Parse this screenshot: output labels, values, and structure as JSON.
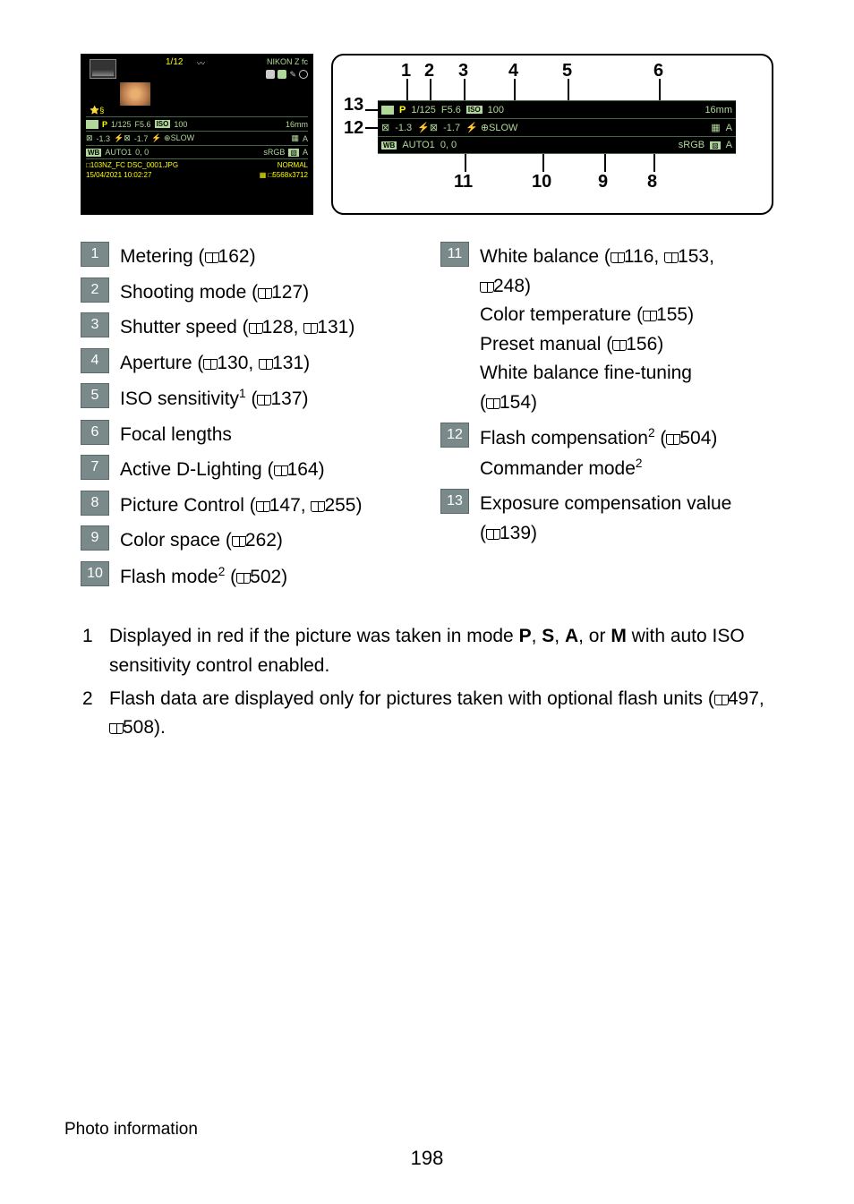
{
  "camera_screen": {
    "frame_counter": "1/12",
    "model": "NIKON Z fc",
    "star": "⭐§",
    "row1": {
      "mode": "P",
      "shutter": "1/125",
      "aperture": "F5.6",
      "iso_label": "ISO",
      "iso": "100",
      "focal": "16mm"
    },
    "row2": {
      "exp_comp": "-1.3",
      "flash_comp": "-1.7",
      "flash_mode": "⚡ ⊕SLOW",
      "dlighting": "A"
    },
    "row3": {
      "wb_label": "WB",
      "wb": "AUTO1",
      "wb_tune": "0, 0",
      "color_space": "sRGB",
      "pc": "A"
    },
    "meta1_left": "□103NZ_FC DSC_0001.JPG",
    "meta1_right": "NORMAL",
    "meta2_left": "15/04/2021 10:02:27",
    "meta2_right": "▦ □5568x3712"
  },
  "callout_numbers": [
    "1",
    "2",
    "3",
    "4",
    "5",
    "6",
    "7",
    "8",
    "9",
    "10",
    "11",
    "12",
    "13"
  ],
  "legend_left": [
    {
      "n": "1",
      "text": "Metering (📖162)"
    },
    {
      "n": "2",
      "text": "Shooting mode (📖127)"
    },
    {
      "n": "3",
      "text": "Shutter speed (📖128, 📖131)"
    },
    {
      "n": "4",
      "text": "Aperture (📖130, 📖131)"
    },
    {
      "n": "5",
      "text": "ISO sensitivity¹ (📖137)"
    },
    {
      "n": "6",
      "text": "Focal lengths"
    },
    {
      "n": "7",
      "text": "Active D-Lighting (📖164)"
    },
    {
      "n": "8",
      "text": "Picture Control (📖147, 📖255)"
    },
    {
      "n": "9",
      "text": "Color space (📖262)"
    },
    {
      "n": "10",
      "text": "Flash mode² (📖502)"
    }
  ],
  "legend_right": [
    {
      "n": "11",
      "lines": [
        "White balance (📖116, 📖153,",
        "📖248)",
        "Color temperature (📖155)",
        "Preset manual (📖156)",
        "White balance fine-tuning",
        "(📖154)"
      ]
    },
    {
      "n": "12",
      "lines": [
        "Flash compensation² (📖504)",
        "Commander mode²"
      ]
    },
    {
      "n": "13",
      "lines": [
        "Exposure compensation value",
        "(📖139)"
      ]
    }
  ],
  "footnotes": [
    {
      "n": "1",
      "text_parts": [
        "Displayed in red if the picture was taken in mode ",
        {
          "b": "P"
        },
        ", ",
        {
          "b": "S"
        },
        ", ",
        {
          "b": "A"
        },
        ", or ",
        {
          "b": "M"
        },
        " with auto ISO sensitivity control enabled."
      ]
    },
    {
      "n": "2",
      "text_parts": [
        "Flash data are displayed only for pictures taken with optional flash units (📖497, 📖508)."
      ]
    }
  ],
  "footer_label": "Photo information",
  "page_number": "198"
}
